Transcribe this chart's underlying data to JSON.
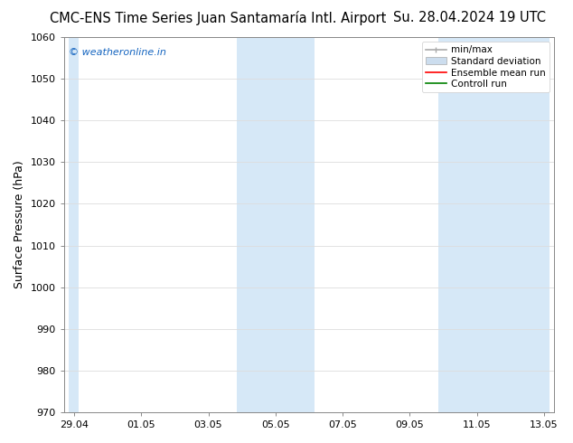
{
  "title": "CMC-ENS Time Series Juan Santamaría Intl. Airport     Su. 28.04.2024 19 UTC",
  "title_left": "CMC-ENS Time Series Juan Santamaría Intl. Airport",
  "title_right": "Su. 28.04.2024 19 UTC",
  "ylabel": "Surface Pressure (hPa)",
  "watermark": "© weatheronline.in",
  "watermark_color": "#1565c0",
  "ylim": [
    970,
    1060
  ],
  "yticks": [
    970,
    980,
    990,
    1000,
    1010,
    1020,
    1030,
    1040,
    1050,
    1060
  ],
  "xtick_labels": [
    "29.04",
    "01.05",
    "03.05",
    "05.05",
    "07.05",
    "09.05",
    "11.05",
    "13.05"
  ],
  "x_num_ticks": 8,
  "xlim_start": 0,
  "xlim_end": 14,
  "shaded_regions": [
    {
      "x_start": -0.15,
      "x_end": 0.15
    },
    {
      "x_start": 4.85,
      "x_end": 7.15
    },
    {
      "x_start": 10.85,
      "x_end": 14.15
    }
  ],
  "shaded_color": "#d6e8f7",
  "legend_items": [
    {
      "label": "min/max",
      "color": "#aaaaaa",
      "lw": 1.2,
      "type": "errorbar"
    },
    {
      "label": "Standard deviation",
      "color": "#ccddee",
      "lw": 5,
      "type": "band"
    },
    {
      "label": "Ensemble mean run",
      "color": "#ff0000",
      "lw": 1.2,
      "type": "line"
    },
    {
      "label": "Controll run",
      "color": "#008000",
      "lw": 1.2,
      "type": "line"
    }
  ],
  "bg_color": "#ffffff",
  "grid_color": "#dddddd",
  "title_fontsize": 10.5,
  "ylabel_fontsize": 9,
  "tick_fontsize": 8,
  "watermark_fontsize": 8,
  "legend_fontsize": 7.5
}
